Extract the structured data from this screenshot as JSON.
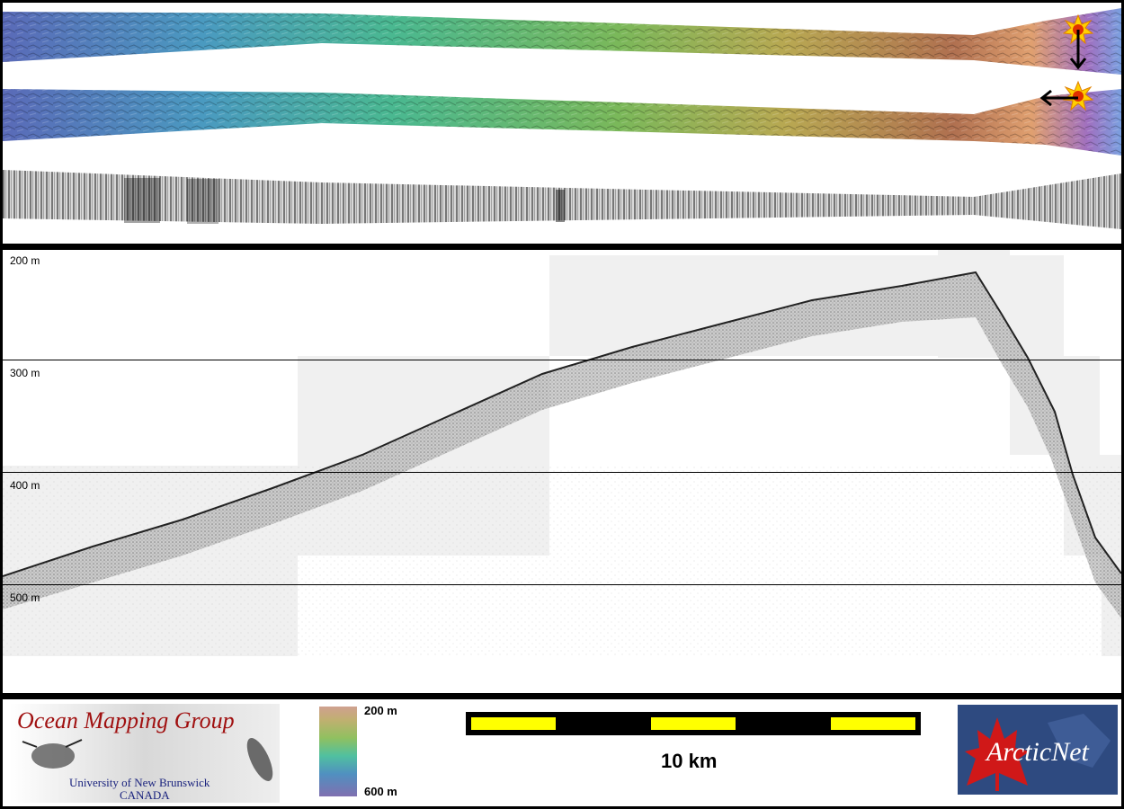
{
  "profile": {
    "depth_labels": [
      "200 m",
      "300 m",
      "400 m",
      "500 m"
    ]
  },
  "footer": {
    "omg_logo": {
      "title": "Ocean Mapping Group",
      "line1": "University of New Brunswick",
      "line2": "CANADA"
    },
    "depth_legend": {
      "top": "200 m",
      "bottom": "600 m"
    },
    "scale_bar": {
      "label": "10 km"
    },
    "arcticnet_logo": {
      "text": "ArcticNet"
    }
  },
  "colors": {
    "background": "#000000",
    "scale_fill": "#ffff00",
    "logo_red": "#a01010",
    "logo_blue": "#1a237e",
    "arctic_bg": "#2e4a80"
  },
  "icons": [
    "sun-marker-icon",
    "arrow-down-icon",
    "arrow-left-icon"
  ]
}
